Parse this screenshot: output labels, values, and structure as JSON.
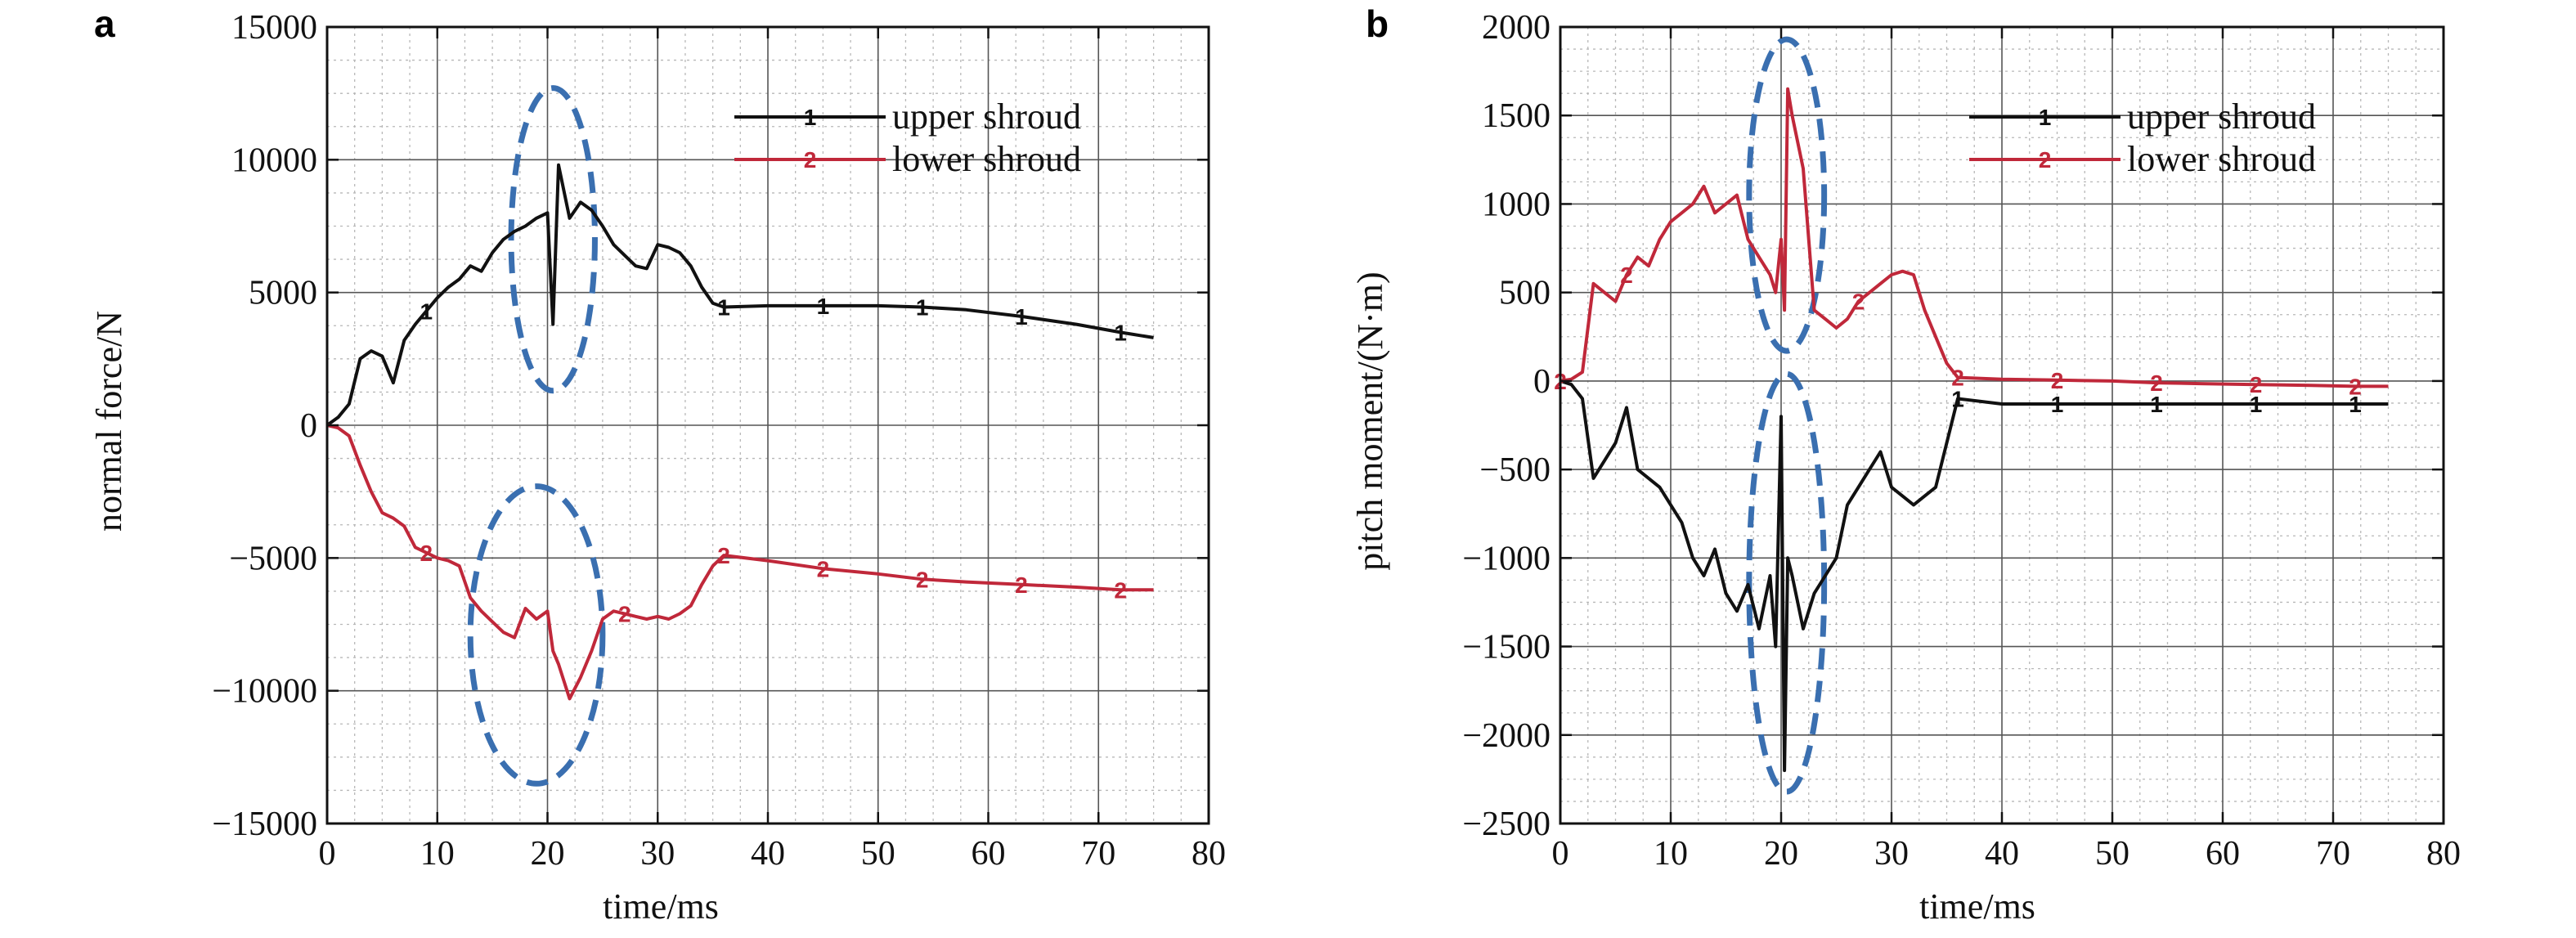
{
  "chart_data": [
    {
      "panel": "a",
      "type": "line",
      "xlabel": "time/ms",
      "ylabel": "normal force/N",
      "xlim": [
        0,
        80
      ],
      "ylim": [
        -15000,
        15000
      ],
      "xticks": [
        "0",
        "10",
        "20",
        "30",
        "40",
        "50",
        "60",
        "70",
        "80"
      ],
      "yticks": [
        "15000",
        "10000",
        "5000",
        "0",
        "−5000",
        "−10000",
        "−15000"
      ],
      "grid": true,
      "legend_position": "top-right",
      "series": [
        {
          "name": "upper shroud",
          "marker": "1",
          "color": "#111111",
          "x": [
            0,
            1,
            2,
            3,
            4,
            5,
            6,
            7,
            8,
            9,
            10,
            11,
            12,
            13,
            14,
            15,
            16,
            17,
            18,
            19,
            20,
            20.5,
            21,
            22,
            23,
            24,
            25,
            26,
            27,
            28,
            29,
            30,
            31,
            32,
            33,
            34,
            35,
            36,
            40,
            45,
            50,
            54,
            58,
            63,
            68,
            72,
            75
          ],
          "y": [
            0,
            300,
            800,
            2500,
            2800,
            2600,
            1600,
            3200,
            3800,
            4300,
            4800,
            5200,
            5500,
            6000,
            5800,
            6500,
            7000,
            7300,
            7500,
            7800,
            8000,
            3800,
            9800,
            7800,
            8400,
            8100,
            7500,
            6800,
            6400,
            6000,
            5900,
            6800,
            6700,
            6500,
            6000,
            5200,
            4600,
            4450,
            4500,
            4500,
            4500,
            4450,
            4350,
            4100,
            3800,
            3500,
            3300
          ],
          "marker_x": [
            9,
            36,
            45,
            54,
            63,
            72
          ]
        },
        {
          "name": "lower shroud",
          "marker": "2",
          "color": "#c0283a",
          "x": [
            0,
            1,
            2,
            3,
            4,
            5,
            6,
            7,
            8,
            9,
            10,
            11,
            12,
            13,
            14,
            15,
            16,
            17,
            18,
            19,
            20,
            20.5,
            21,
            22,
            23,
            24,
            25,
            26,
            27,
            28,
            29,
            30,
            31,
            32,
            33,
            34,
            35,
            36,
            40,
            45,
            50,
            54,
            58,
            63,
            68,
            72,
            75
          ],
          "y": [
            0,
            -100,
            -400,
            -1500,
            -2500,
            -3300,
            -3500,
            -3800,
            -4600,
            -4800,
            -5000,
            -5100,
            -5300,
            -6500,
            -7000,
            -7400,
            -7800,
            -8000,
            -6900,
            -7300,
            -7000,
            -8500,
            -9000,
            -10300,
            -9500,
            -8500,
            -7300,
            -7000,
            -7100,
            -7200,
            -7300,
            -7200,
            -7300,
            -7100,
            -6800,
            -6000,
            -5300,
            -4900,
            -5100,
            -5400,
            -5600,
            -5800,
            -5900,
            -6000,
            -6100,
            -6200,
            -6200
          ],
          "marker_x": [
            9,
            27,
            36,
            45,
            54,
            63,
            72
          ]
        }
      ],
      "annotations": [
        {
          "type": "dashed-ellipse",
          "cx": 20.5,
          "cy": 7000,
          "rx": 3.8,
          "ry": 5700
        },
        {
          "type": "dashed-ellipse",
          "cx": 19.0,
          "cy": -7900,
          "rx": 6.0,
          "ry": 5600
        }
      ]
    },
    {
      "panel": "b",
      "type": "line",
      "xlabel": "time/ms",
      "ylabel": "pitch moment/(N·m)",
      "xlim": [
        0,
        80
      ],
      "ylim": [
        -2500,
        2000
      ],
      "xticks": [
        "0",
        "10",
        "20",
        "30",
        "40",
        "50",
        "60",
        "70",
        "80"
      ],
      "yticks": [
        "2000",
        "1500",
        "1000",
        "500",
        "0",
        "−500",
        "−1000",
        "−1500",
        "−2000",
        "−2500"
      ],
      "grid": true,
      "legend_position": "top-right",
      "series": [
        {
          "name": "upper shroud",
          "marker": "1",
          "color": "#111111",
          "x": [
            0,
            1,
            2,
            3,
            4,
            5,
            6,
            7,
            8,
            9,
            10,
            11,
            12,
            13,
            14,
            15,
            16,
            17,
            18,
            19,
            19.5,
            20,
            20.3,
            20.6,
            21,
            22,
            23,
            24,
            25,
            26,
            27,
            28,
            29,
            30,
            31,
            32,
            33,
            34,
            35,
            36,
            40,
            45,
            50,
            54,
            58,
            63,
            68,
            72,
            75
          ],
          "y": [
            0,
            -20,
            -100,
            -550,
            -450,
            -350,
            -150,
            -500,
            -550,
            -600,
            -700,
            -800,
            -1000,
            -1100,
            -950,
            -1200,
            -1300,
            -1150,
            -1400,
            -1100,
            -1500,
            -200,
            -2200,
            -1000,
            -1100,
            -1400,
            -1200,
            -1100,
            -1000,
            -700,
            -600,
            -500,
            -400,
            -600,
            -650,
            -700,
            -650,
            -600,
            -350,
            -100,
            -130,
            -130,
            -130,
            -130,
            -130,
            -130,
            -130,
            -130,
            -130
          ],
          "marker_x": [
            36,
            45,
            54,
            63,
            72
          ]
        },
        {
          "name": "lower shroud",
          "marker": "2",
          "color": "#c0283a",
          "x": [
            0,
            1,
            2,
            3,
            4,
            5,
            6,
            7,
            8,
            9,
            10,
            11,
            12,
            13,
            14,
            15,
            16,
            17,
            18,
            19,
            19.5,
            20,
            20.3,
            20.6,
            21,
            22,
            23,
            24,
            25,
            26,
            27,
            28,
            29,
            30,
            31,
            32,
            33,
            34,
            35,
            36,
            40,
            45,
            50,
            54,
            58,
            63,
            68,
            72,
            75
          ],
          "y": [
            0,
            10,
            50,
            550,
            500,
            450,
            600,
            700,
            650,
            800,
            900,
            950,
            1000,
            1100,
            950,
            1000,
            1050,
            800,
            700,
            600,
            500,
            800,
            400,
            1650,
            1500,
            1200,
            400,
            350,
            300,
            350,
            450,
            500,
            550,
            600,
            620,
            600,
            400,
            250,
            100,
            20,
            10,
            5,
            0,
            -10,
            -15,
            -20,
            -25,
            -30,
            -30
          ],
          "marker_x": [
            0,
            6,
            27,
            36,
            45,
            54,
            63,
            72
          ]
        }
      ],
      "annotations": [
        {
          "type": "dashed-ellipse",
          "cx": 20.5,
          "cy": 1050,
          "rx": 3.4,
          "ry": 880
        },
        {
          "type": "dashed-ellipse",
          "cx": 20.5,
          "cy": -1140,
          "rx": 3.4,
          "ry": 1180
        }
      ]
    }
  ]
}
